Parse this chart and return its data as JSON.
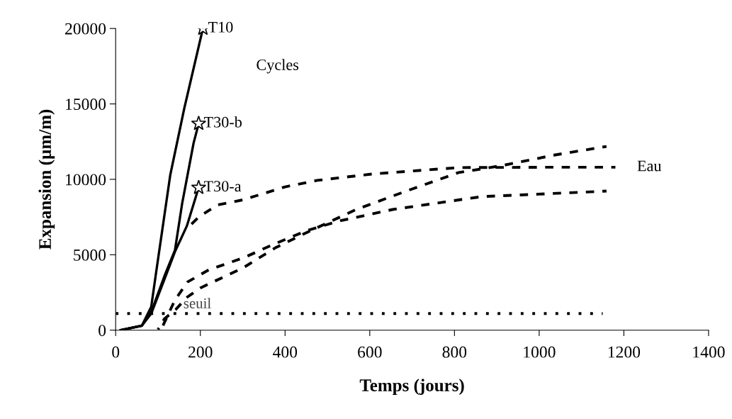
{
  "chart_data": {
    "type": "line",
    "xlabel": "Temps (jours)",
    "ylabel": "Expansion (µm/m)",
    "xlim": [
      0,
      1400
    ],
    "xticks": [
      0,
      200,
      400,
      600,
      800,
      1000,
      1200,
      1400
    ],
    "ylim": [
      0,
      20000
    ],
    "yticks": [
      0,
      5000,
      10000,
      15000,
      20000
    ],
    "grid": false,
    "legend": false,
    "annotations": [
      "Cycles",
      "Eau"
    ],
    "series": [
      {
        "type": "scatter",
        "color": "#000000",
        "marker": "star",
        "x": [
          206
        ],
        "values": [
          20000
        ]
      },
      {
        "type": "scatter",
        "color": "#000000",
        "marker": "star",
        "x": [
          196
        ],
        "values": [
          13700
        ]
      },
      {
        "type": "scatter",
        "color": "#000000",
        "marker": "star",
        "x": [
          196
        ],
        "values": [
          9450
        ]
      },
      {
        "name": "T10",
        "color": "#000000",
        "line_style": "solid",
        "marker": "none",
        "x": [
          12,
          62,
          84,
          95,
          129,
          162,
          206
        ],
        "values": [
          0,
          300,
          1550,
          3720,
          10300,
          14700,
          20000
        ]
      },
      {
        "name": "T30-b",
        "color": "#000000",
        "line_style": "solid",
        "marker": "none",
        "x": [
          12,
          62,
          84,
          117,
          140,
          157,
          184,
          196
        ],
        "values": [
          0,
          300,
          1200,
          3720,
          5300,
          8400,
          12400,
          13700
        ]
      },
      {
        "name": "T30-a",
        "color": "#000000",
        "line_style": "solid",
        "marker": "none",
        "x": [
          12,
          62,
          84,
          117,
          140,
          168,
          196
        ],
        "values": [
          0,
          300,
          1100,
          3500,
          5200,
          6900,
          9450
        ]
      },
      {
        "color": "#000000",
        "line_style": "dashed",
        "marker": "none",
        "x": [
          167,
          196,
          240,
          302,
          400,
          476,
          605,
          810,
          1000,
          1180
        ],
        "values": [
          6700,
          7500,
          8300,
          8650,
          9500,
          9930,
          10350,
          10780,
          10800,
          10800
        ]
      },
      {
        "color": "#000000",
        "line_style": "dashed",
        "marker": "none",
        "x": [
          100,
          115,
          142,
          167,
          200,
          302,
          377,
          453,
          568,
          682,
          810,
          910,
          1038,
          1159
        ],
        "values": [
          50,
          750,
          1370,
          2150,
          2800,
          4150,
          5460,
          6500,
          8000,
          9180,
          10450,
          10900,
          11620,
          12180
        ]
      },
      {
        "color": "#000000",
        "line_style": "dashed",
        "marker": "none",
        "x": [
          110,
          140,
          170,
          220,
          302,
          377,
          453,
          530,
          654,
          863,
          1159
        ],
        "values": [
          200,
          2000,
          3200,
          4000,
          4800,
          5740,
          6620,
          7250,
          8000,
          8850,
          9220
        ]
      },
      {
        "name": "seuil",
        "color": "#000000",
        "line_style": "dotted",
        "marker": "none",
        "x": [
          0,
          1150
        ],
        "values": [
          1100,
          1100
        ]
      }
    ]
  }
}
